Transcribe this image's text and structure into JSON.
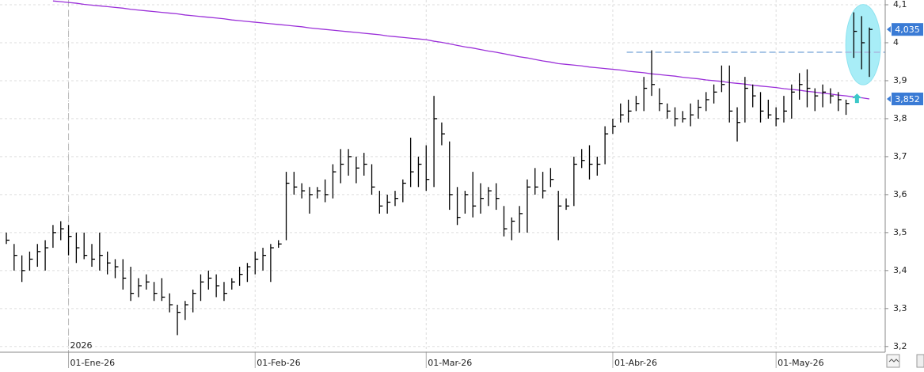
{
  "chart_data": {
    "type": "ohlc",
    "categories": [
      null,
      null,
      null,
      null,
      null,
      null,
      null,
      null,
      "01-Ene-26",
      null,
      null,
      null,
      null,
      null,
      null,
      null,
      null,
      null,
      null,
      null,
      null,
      null,
      null,
      null,
      null,
      null,
      null,
      null,
      null,
      null,
      null,
      null,
      "01-Feb-26",
      null,
      null,
      null,
      null,
      null,
      null,
      null,
      null,
      null,
      null,
      null,
      null,
      null,
      null,
      null,
      null,
      null,
      null,
      null,
      null,
      null,
      "01-Mar-26",
      null,
      null,
      null,
      null,
      null,
      null,
      null,
      null,
      null,
      null,
      null,
      null,
      null,
      null,
      null,
      null,
      null,
      null,
      null,
      null,
      null,
      null,
      null,
      "01-Abr-26",
      null,
      null,
      null,
      null,
      null,
      null,
      null,
      null,
      null,
      null,
      null,
      null,
      null,
      null,
      null,
      null,
      null,
      null,
      null,
      null,
      "01-May-26",
      null,
      null,
      null,
      null,
      null,
      null,
      null,
      null,
      null,
      null,
      null,
      null
    ],
    "year_label": "2026",
    "high": [
      3.5,
      3.47,
      3.44,
      3.45,
      3.47,
      3.48,
      3.52,
      3.53,
      3.52,
      3.5,
      3.5,
      3.47,
      3.5,
      3.45,
      3.43,
      3.43,
      3.41,
      3.38,
      3.39,
      3.37,
      3.38,
      3.34,
      3.31,
      3.32,
      3.35,
      3.39,
      3.4,
      3.39,
      3.37,
      3.38,
      3.41,
      3.42,
      3.45,
      3.46,
      3.47,
      3.48,
      3.66,
      3.66,
      3.63,
      3.62,
      3.62,
      3.64,
      3.68,
      3.72,
      3.72,
      3.7,
      3.71,
      3.68,
      3.61,
      3.6,
      3.61,
      3.64,
      3.75,
      3.7,
      3.73,
      3.86,
      3.79,
      3.74,
      3.62,
      3.61,
      3.66,
      3.63,
      3.62,
      3.63,
      3.57,
      3.54,
      3.57,
      3.64,
      3.67,
      3.66,
      3.67,
      3.61,
      3.59,
      3.7,
      3.72,
      3.73,
      3.7,
      3.78,
      3.8,
      3.84,
      3.85,
      3.86,
      3.91,
      3.98,
      3.88,
      3.84,
      3.83,
      3.82,
      3.84,
      3.85,
      3.87,
      3.89,
      3.94,
      3.94,
      3.83,
      3.91,
      3.89,
      3.87,
      3.85,
      3.83,
      3.86,
      3.89,
      3.92,
      3.93,
      3.88,
      3.89,
      3.88,
      3.87,
      3.85,
      4.08,
      4.07,
      4.04
    ],
    "low": [
      3.47,
      3.4,
      3.37,
      3.4,
      3.41,
      3.4,
      3.46,
      3.48,
      3.44,
      3.42,
      3.43,
      3.41,
      3.4,
      3.39,
      3.38,
      3.35,
      3.32,
      3.33,
      3.35,
      3.32,
      3.32,
      3.29,
      3.23,
      3.27,
      3.29,
      3.32,
      3.35,
      3.33,
      3.32,
      3.35,
      3.36,
      3.37,
      3.39,
      3.4,
      3.37,
      3.46,
      3.48,
      3.6,
      3.59,
      3.55,
      3.59,
      3.58,
      3.59,
      3.63,
      3.65,
      3.63,
      3.65,
      3.6,
      3.55,
      3.55,
      3.57,
      3.58,
      3.62,
      3.62,
      3.61,
      3.62,
      3.73,
      3.56,
      3.52,
      3.55,
      3.54,
      3.55,
      3.57,
      3.56,
      3.49,
      3.48,
      3.5,
      3.5,
      3.6,
      3.59,
      3.62,
      3.48,
      3.56,
      3.57,
      3.67,
      3.64,
      3.65,
      3.68,
      3.76,
      3.79,
      3.79,
      3.82,
      3.82,
      3.86,
      3.82,
      3.8,
      3.78,
      3.79,
      3.78,
      3.8,
      3.82,
      3.84,
      3.87,
      3.79,
      3.74,
      3.79,
      3.83,
      3.79,
      3.8,
      3.78,
      3.79,
      3.8,
      3.85,
      3.83,
      3.82,
      3.83,
      3.84,
      3.82,
      3.81,
      3.96,
      3.93,
      3.91
    ],
    "close": [
      3.48,
      3.44,
      3.4,
      3.43,
      3.45,
      3.46,
      3.5,
      3.51,
      3.49,
      3.46,
      3.44,
      3.43,
      3.44,
      3.42,
      3.41,
      3.38,
      3.34,
      3.36,
      3.37,
      3.34,
      3.33,
      3.31,
      3.29,
      3.31,
      3.34,
      3.37,
      3.38,
      3.36,
      3.34,
      3.37,
      3.39,
      3.41,
      3.43,
      3.44,
      3.46,
      3.47,
      3.63,
      3.62,
      3.61,
      3.6,
      3.61,
      3.6,
      3.66,
      3.68,
      3.7,
      3.67,
      3.68,
      3.62,
      3.57,
      3.58,
      3.59,
      3.63,
      3.66,
      3.68,
      3.64,
      3.8,
      3.76,
      3.6,
      3.54,
      3.6,
      3.57,
      3.59,
      3.61,
      3.59,
      3.51,
      3.53,
      3.55,
      3.62,
      3.62,
      3.61,
      3.64,
      3.57,
      3.57,
      3.68,
      3.69,
      3.68,
      3.68,
      3.76,
      3.78,
      3.81,
      3.82,
      3.84,
      3.88,
      3.89,
      3.84,
      3.82,
      3.8,
      3.8,
      3.81,
      3.83,
      3.85,
      3.87,
      3.89,
      3.82,
      3.79,
      3.88,
      3.86,
      3.82,
      3.81,
      3.8,
      3.82,
      3.87,
      3.89,
      3.88,
      3.86,
      3.87,
      3.86,
      3.85,
      3.84,
      4.03,
      4.0,
      4.035
    ],
    "color": "#000000",
    "moving_average": {
      "color": "#9b30d9",
      "values": [
        null,
        null,
        null,
        null,
        null,
        null,
        4.11,
        4.108,
        4.106,
        4.104,
        4.101,
        4.099,
        4.097,
        4.095,
        4.093,
        4.091,
        4.088,
        4.086,
        4.084,
        4.082,
        4.08,
        4.078,
        4.076,
        4.073,
        4.071,
        4.069,
        4.067,
        4.065,
        4.063,
        4.06,
        4.058,
        4.056,
        4.054,
        4.052,
        4.05,
        4.048,
        4.046,
        4.044,
        4.042,
        4.039,
        4.037,
        4.035,
        4.033,
        4.031,
        4.029,
        4.027,
        4.025,
        4.023,
        4.021,
        4.018,
        4.016,
        4.014,
        4.012,
        4.01,
        4.008,
        4.004,
        4.001,
        3.997,
        3.993,
        3.989,
        3.986,
        3.982,
        3.978,
        3.975,
        3.971,
        3.967,
        3.963,
        3.96,
        3.956,
        3.952,
        3.949,
        3.945,
        3.943,
        3.941,
        3.939,
        3.936,
        3.934,
        3.932,
        3.93,
        3.928,
        3.925,
        3.923,
        3.921,
        3.918,
        3.916,
        3.914,
        3.912,
        3.909,
        3.907,
        3.905,
        3.902,
        3.9,
        3.898,
        3.895,
        3.893,
        3.891,
        3.888,
        3.886,
        3.884,
        3.882,
        3.879,
        3.877,
        3.875,
        3.872,
        3.87,
        3.867,
        3.865,
        3.862,
        3.86,
        3.857,
        3.855,
        3.852
      ]
    },
    "reference_line": {
      "value": 3.975,
      "color": "#a9c6e6"
    },
    "price_labels": [
      {
        "value": 4.035,
        "label": "4,035"
      },
      {
        "value": 3.852,
        "label": "3,852"
      }
    ],
    "ylim": [
      3.185,
      4.1125
    ],
    "yticks": [
      {
        "value": 3.2,
        "label": "3,2"
      },
      {
        "value": 3.3,
        "label": "3,3"
      },
      {
        "value": 3.4,
        "label": "3,4"
      },
      {
        "value": 3.5,
        "label": "3,5"
      },
      {
        "value": 3.6,
        "label": "3,6"
      },
      {
        "value": 3.7,
        "label": "3,7"
      },
      {
        "value": 3.8,
        "label": "3,8"
      },
      {
        "value": 3.9,
        "label": "3,9"
      },
      {
        "value": 4.0,
        "label": "4"
      },
      {
        "value": 4.1,
        "label": "4,1"
      }
    ],
    "grid": true
  }
}
